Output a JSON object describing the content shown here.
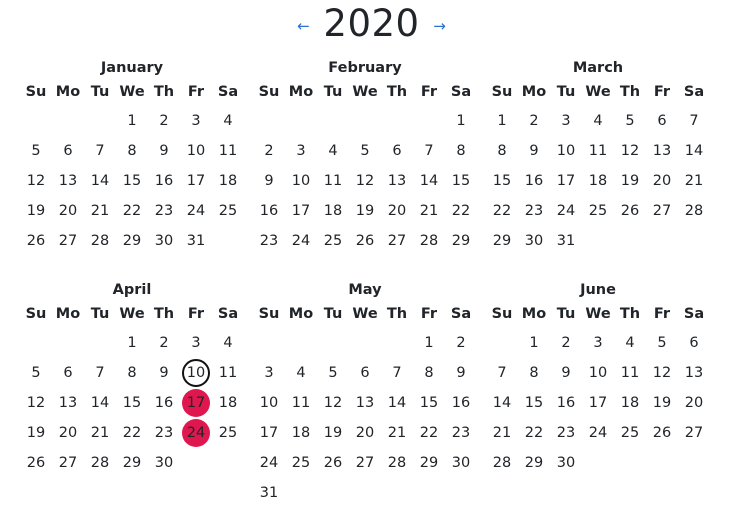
{
  "header": {
    "prev_arrow": "←",
    "year": "2020",
    "next_arrow": "→"
  },
  "weekdays": [
    "Su",
    "Mo",
    "Tu",
    "We",
    "Th",
    "Fr",
    "Sa"
  ],
  "colors": {
    "accent": "#2f6fd0",
    "event": "#e0164f",
    "today_ring": "#111111"
  },
  "months": [
    {
      "name": "January",
      "first_weekday": 3,
      "days": 31,
      "today": null,
      "events": []
    },
    {
      "name": "February",
      "first_weekday": 6,
      "days": 29,
      "today": null,
      "events": []
    },
    {
      "name": "March",
      "first_weekday": 0,
      "days": 31,
      "today": null,
      "events": []
    },
    {
      "name": "April",
      "first_weekday": 3,
      "days": 30,
      "today": 10,
      "events": [
        17,
        24
      ]
    },
    {
      "name": "May",
      "first_weekday": 5,
      "days": 31,
      "today": null,
      "events": []
    },
    {
      "name": "June",
      "first_weekday": 1,
      "days": 30,
      "today": null,
      "events": []
    }
  ]
}
